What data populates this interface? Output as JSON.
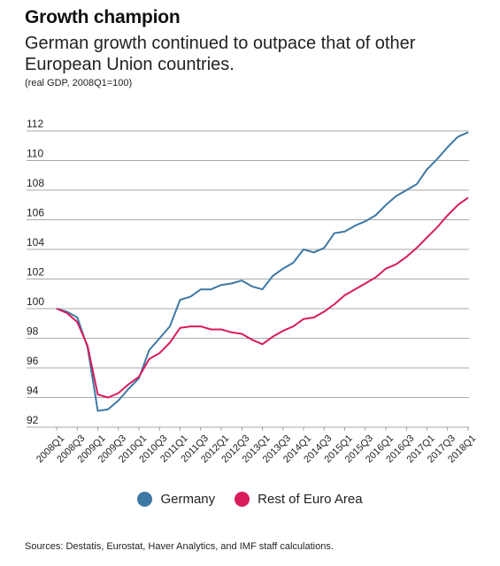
{
  "header": {
    "title": "Growth champion",
    "subtitle": "German growth continued to outpace that of other European Union countries.",
    "note": "(real GDP, 2008Q1=100)"
  },
  "source": "Sources: Destatis, Eurostat, Haver Analytics, and IMF staff calculations.",
  "chart_data": {
    "type": "line",
    "ylim": [
      92,
      112
    ],
    "yticks": [
      "112",
      "110",
      "108",
      "106",
      "104",
      "102",
      "100",
      "98",
      "96",
      "94",
      "92"
    ],
    "grid": true,
    "legend_position": "bottom",
    "x": [
      "2008Q1",
      "2008Q2",
      "2008Q3",
      "2008Q4",
      "2009Q1",
      "2009Q2",
      "2009Q3",
      "2009Q4",
      "2010Q1",
      "2010Q2",
      "2010Q3",
      "2010Q4",
      "2011Q1",
      "2011Q2",
      "2011Q3",
      "2011Q4",
      "2012Q1",
      "2012Q2",
      "2012Q3",
      "2012Q4",
      "2013Q1",
      "2013Q2",
      "2013Q3",
      "2013Q4",
      "2014Q1",
      "2014Q2",
      "2014Q3",
      "2014Q4",
      "2015Q1",
      "2015Q2",
      "2015Q3",
      "2015Q4",
      "2016Q1",
      "2016Q2",
      "2016Q3",
      "2016Q4",
      "2017Q1",
      "2017Q2",
      "2017Q3",
      "2017Q4",
      "2018Q1"
    ],
    "xtick_labels": [
      "2008Q1",
      "2008Q3",
      "2009Q1",
      "2009Q3",
      "2010Q1",
      "2010Q3",
      "2011Q1",
      "2011Q3",
      "2012Q1",
      "2012Q3",
      "2013Q1",
      "2013Q3",
      "2014Q1",
      "2014Q3",
      "2015Q1",
      "2015Q3",
      "2016Q1",
      "2016Q3",
      "2017Q1",
      "2017Q3",
      "2018Q1"
    ],
    "series": [
      {
        "name": "Germany",
        "color": "#3e78a4",
        "values": [
          100.0,
          99.8,
          99.4,
          97.4,
          93.1,
          93.2,
          93.8,
          94.6,
          95.3,
          97.2,
          98.0,
          98.8,
          100.6,
          100.8,
          101.3,
          101.3,
          101.6,
          101.7,
          101.9,
          101.5,
          101.3,
          102.2,
          102.7,
          103.1,
          104.0,
          103.8,
          104.1,
          105.1,
          105.2,
          105.6,
          105.9,
          106.3,
          107.0,
          107.6,
          108.0,
          108.4,
          109.4,
          110.1,
          110.9,
          111.6,
          111.9
        ]
      },
      {
        "name": "Rest of Euro Area",
        "color": "#d81b5a",
        "values": [
          100.0,
          99.7,
          99.1,
          97.5,
          94.2,
          94.0,
          94.3,
          94.9,
          95.4,
          96.6,
          97.0,
          97.7,
          98.7,
          98.8,
          98.8,
          98.6,
          98.6,
          98.4,
          98.3,
          97.9,
          97.6,
          98.1,
          98.5,
          98.8,
          99.3,
          99.4,
          99.8,
          100.3,
          100.9,
          101.3,
          101.7,
          102.1,
          102.7,
          103.0,
          103.5,
          104.1,
          104.8,
          105.5,
          106.3,
          107.0,
          107.5
        ]
      }
    ]
  }
}
